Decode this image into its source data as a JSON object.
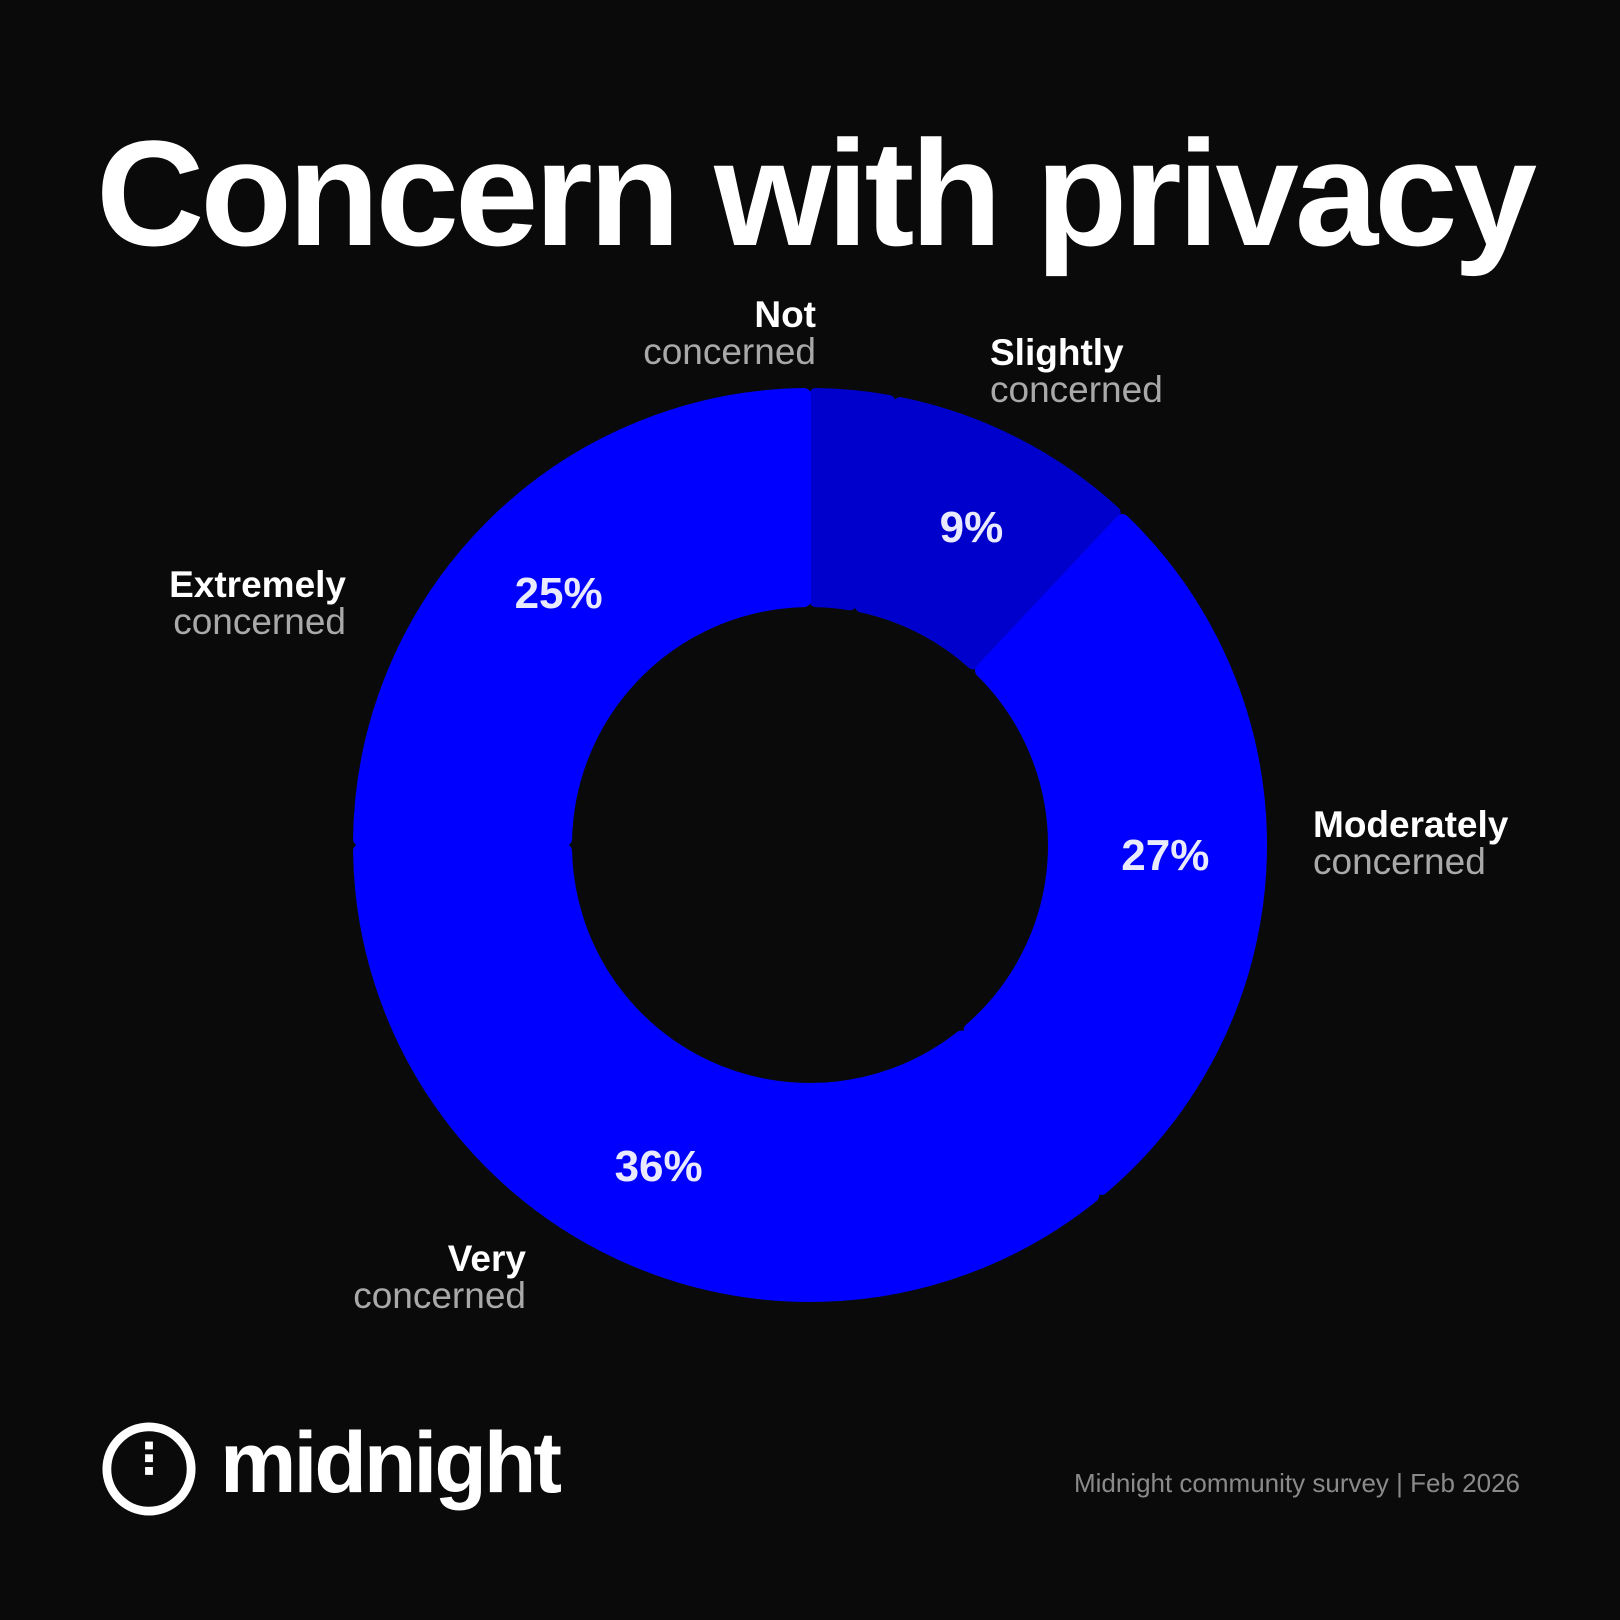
{
  "title": "Concern with privacy",
  "brand": {
    "name": "midnight",
    "logo_icon": "midnight-logo-icon"
  },
  "source": "Midnight community survey | Feb 2026",
  "colors": {
    "background": "#0a0a0a",
    "primary": "#0000ff",
    "secondary": "#0000cc",
    "category_line1": "#ffffff",
    "category_line2": "#a9a9a9",
    "value_label": "#e9e9ff"
  },
  "chart_data": {
    "type": "pie",
    "title": "Concern with privacy",
    "donut": true,
    "start_at": "12 o'clock, clockwise",
    "series": [
      {
        "category": "Not concerned",
        "line1": "Not",
        "line2": "concerned",
        "value": 3,
        "label": "",
        "color": "#0000cc"
      },
      {
        "category": "Slightly concerned",
        "line1": "Slightly",
        "line2": "concerned",
        "value": 9,
        "label": "9%",
        "color": "#0000cc"
      },
      {
        "category": "Moderately concerned",
        "line1": "Moderately",
        "line2": "concerned",
        "value": 27,
        "label": "27%",
        "color": "#0000ff"
      },
      {
        "category": "Very concerned",
        "line1": "Very",
        "line2": "concerned",
        "value": 36,
        "label": "36%",
        "color": "#0000ff"
      },
      {
        "category": "Extremely concerned",
        "line1": "Extremely",
        "line2": "concerned",
        "value": 25,
        "label": "25%",
        "color": "#0000ff"
      }
    ]
  }
}
